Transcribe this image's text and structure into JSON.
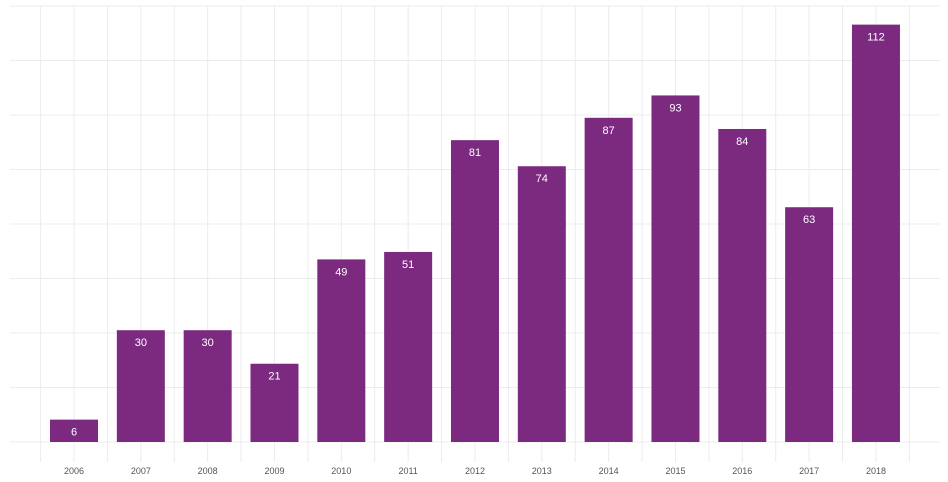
{
  "chart_data": {
    "type": "bar",
    "categories": [
      "2006",
      "2007",
      "2008",
      "2009",
      "2010",
      "2011",
      "2012",
      "2013",
      "2014",
      "2015",
      "2016",
      "2017",
      "2018"
    ],
    "values": [
      6,
      30,
      30,
      21,
      49,
      51,
      81,
      74,
      87,
      93,
      84,
      63,
      112
    ],
    "title": "",
    "xlabel": "",
    "ylabel": "",
    "ylim": [
      0,
      117
    ],
    "y_tick_labels_shown": false,
    "data_labels": true,
    "grid": true,
    "bar_color": "#7b2a80",
    "data_label_color": "#ffffff",
    "grid_color": "#ececec"
  }
}
